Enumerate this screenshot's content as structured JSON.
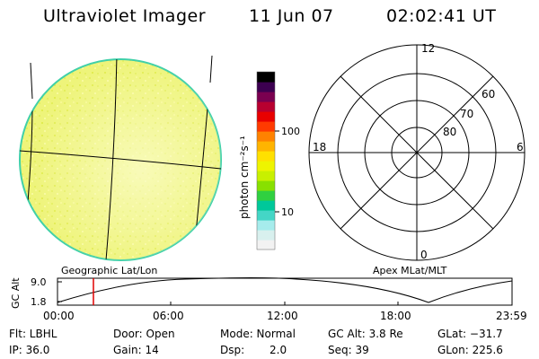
{
  "header": {
    "title": "Ultraviolet Imager",
    "date": "11 Jun 07",
    "time": "02:02:41 UT"
  },
  "colorbar": {
    "unit": "photon cm⁻²s⁻¹",
    "tick_100": "100",
    "tick_10": "10",
    "colors": [
      "#f2f2f2",
      "#d8f0ee",
      "#a6ecec",
      "#44d6c6",
      "#00c89a",
      "#30d040",
      "#88e000",
      "#c8f000",
      "#eef400",
      "#ffe000",
      "#ffb400",
      "#ff8200",
      "#ff3a00",
      "#e80000",
      "#b80030",
      "#7a0050",
      "#3c0050",
      "#000000"
    ]
  },
  "left_panel": {
    "label": "Geographic Lat/Lon",
    "disk_fill": "#f2f88a",
    "disk_edge": "#40d0a8"
  },
  "right_panel": {
    "label": "Apex MLat/MLT",
    "mlt_12": "12",
    "mlt_18": "18",
    "mlt_6": "6",
    "mlt_0": "0",
    "lat_60": "60",
    "lat_70": "70",
    "lat_80": "80"
  },
  "altitude_plot": {
    "ylabel": "GC Alt",
    "ytick_top": "9.0",
    "ytick_bottom": "1.8",
    "xticks": [
      "00:00",
      "06:00",
      "12:00",
      "18:00",
      "23:59"
    ],
    "marker_color": "#e00000"
  },
  "info": {
    "flt": "Flt: LBHL",
    "ip": "IP: 36.0",
    "door": "Door: Open",
    "gain": "Gain: 14",
    "mode": "Mode: Normal",
    "dsp_label": "Dsp:",
    "dsp_value": "2.0",
    "gc_alt": "GC Alt: 3.8 Re",
    "seq": "Seq: 39",
    "glat": "GLat: −31.7",
    "glon": "GLon: 225.6"
  }
}
